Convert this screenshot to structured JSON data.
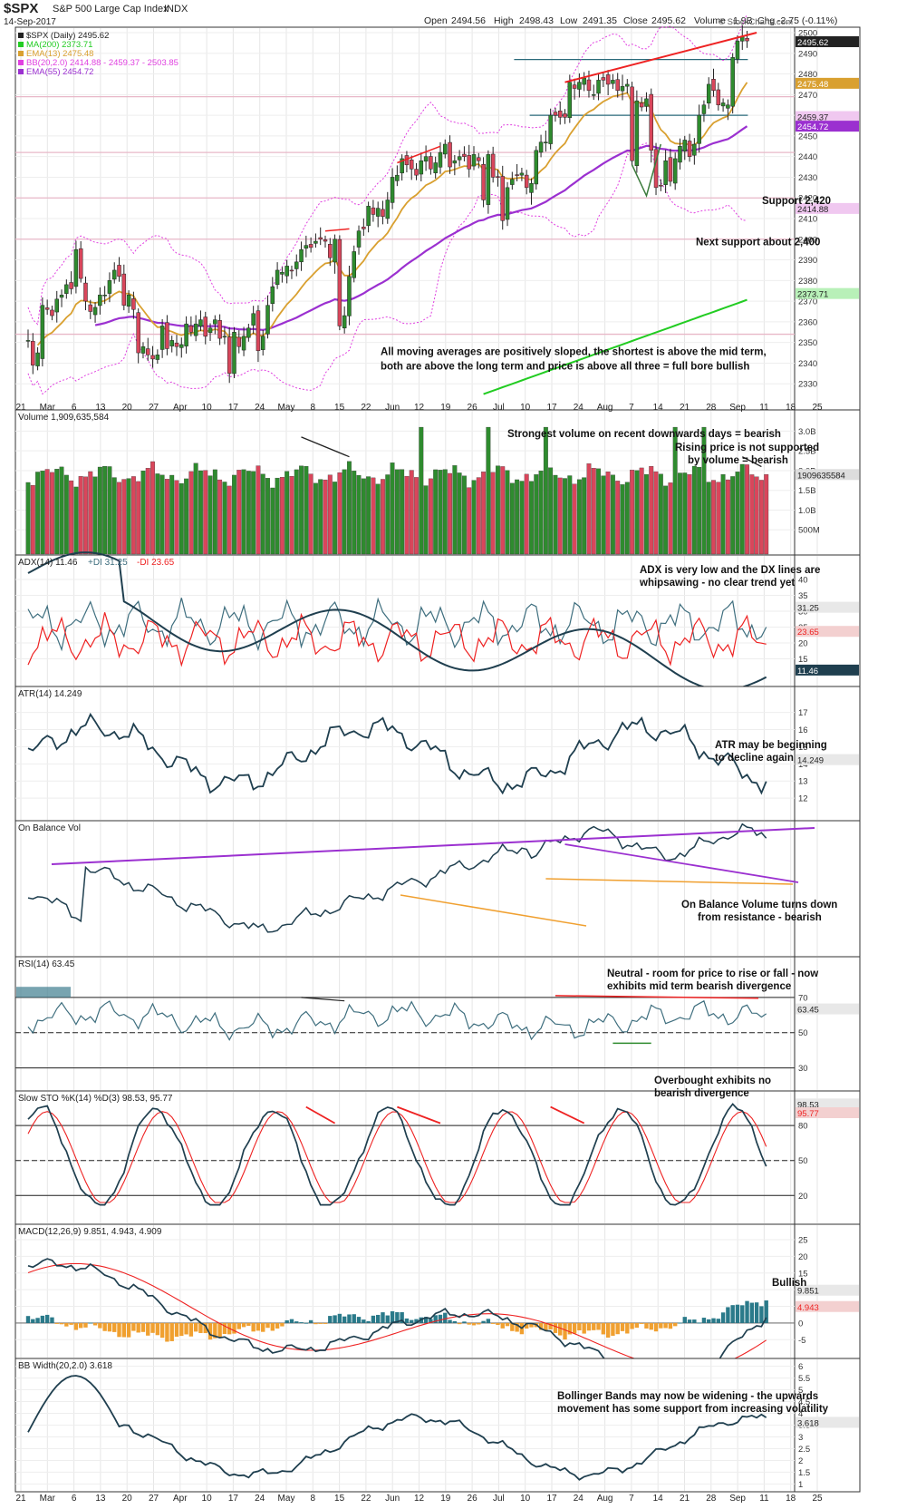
{
  "header": {
    "symbol": "$SPX",
    "name": "S&P 500 Large Cap Index",
    "exchange": "INDX",
    "date": "14-Sep-2017",
    "open_label": "Open",
    "open": "2494.56",
    "high_label": "High",
    "high": "2498.43",
    "low_label": "Low",
    "low": "2491.35",
    "close_label": "Close",
    "close": "2495.62",
    "volume_label": "Volume",
    "volume": "1.9B",
    "chg_label": "Chg",
    "chg": "-2.75 (-0.11%)",
    "copyright": "© StockCharts.com"
  },
  "colors": {
    "up": "#2e8b2e",
    "down": "#d9465b",
    "ma200": "#22cc22",
    "ema13": "#d9a030",
    "bb": "#e040e0",
    "ema55": "#9b30d0",
    "dark": "#1f3f4f",
    "red": "#ee2222",
    "orange": "#f0a030",
    "purple": "#9b30d0",
    "teal": "#2a7a8a"
  },
  "x_axis": {
    "labels": [
      "21",
      "Mar",
      "6",
      "13",
      "20",
      "27",
      "Apr",
      "10",
      "17",
      "24",
      "May",
      "8",
      "15",
      "22",
      "Jun",
      "12",
      "19",
      "26",
      "Jul",
      "10",
      "17",
      "24",
      "Aug",
      "7",
      "14",
      "21",
      "28",
      "Sep",
      "11",
      "18",
      "25"
    ]
  },
  "chart_data": [
    {
      "type": "candlestick",
      "title": "$SPX (Daily) 2495.62",
      "ylim": [
        2320,
        2500
      ],
      "yticks": [
        2330,
        2340,
        2350,
        2360,
        2370,
        2380,
        2390,
        2400,
        2410,
        2420,
        2430,
        2440,
        2450,
        2460,
        2470,
        2480,
        2490,
        2500
      ],
      "legend": [
        {
          "label": "$SPX (Daily) 2495.62",
          "color": "#222222"
        },
        {
          "label": "MA(200) 2373.71",
          "color": "#22cc22"
        },
        {
          "label": "EMA(13) 2475.48",
          "color": "#d9a030"
        },
        {
          "label": "BB(20,2.0) 2414.88 - 2459.37 - 2503.85",
          "color": "#e040e0"
        },
        {
          "label": "EMA(55) 2454.72",
          "color": "#9b30d0"
        }
      ],
      "value_tags": [
        {
          "text": "2495.62",
          "value": 2495.62,
          "color": "#ffffff",
          "bg": "#222222"
        },
        {
          "text": "2475.48",
          "value": 2475.48,
          "color": "#ffffff",
          "bg": "#d9a030"
        },
        {
          "text": "2459.37",
          "value": 2459.37,
          "color": "#222222",
          "bg": "#f0c8f0"
        },
        {
          "text": "2454.72",
          "value": 2454.72,
          "color": "#ffffff",
          "bg": "#9b30d0"
        },
        {
          "text": "2414.88",
          "value": 2414.88,
          "color": "#222222",
          "bg": "#f0c8f0"
        },
        {
          "text": "2373.71",
          "value": 2373.71,
          "color": "#222222",
          "bg": "#b8f0b8"
        }
      ],
      "candles_close": [
        2351,
        2339,
        2345,
        2368,
        2366,
        2363,
        2371,
        2373,
        2378,
        2376,
        2395,
        2381,
        2370,
        2365,
        2367,
        2373,
        2373,
        2380,
        2385,
        2382,
        2368,
        2373,
        2366,
        2345,
        2348,
        2344,
        2342,
        2344,
        2358,
        2347,
        2351,
        2348,
        2349,
        2359,
        2355,
        2359,
        2361,
        2353,
        2357,
        2361,
        2352,
        2353,
        2335,
        2355,
        2348,
        2353,
        2357,
        2364,
        2346,
        2353,
        2368,
        2377,
        2385,
        2384,
        2387,
        2385,
        2389,
        2395,
        2397,
        2396,
        2399,
        2400,
        2399,
        2391,
        2400,
        2358,
        2363,
        2382,
        2394,
        2404,
        2405,
        2416,
        2412,
        2415,
        2411,
        2419,
        2430,
        2431,
        2439,
        2436,
        2434,
        2431,
        2438,
        2440,
        2434,
        2437,
        2442,
        2446,
        2435,
        2438,
        2440,
        2440,
        2434,
        2441,
        2438,
        2419,
        2441,
        2430,
        2430,
        2409,
        2425,
        2429,
        2431,
        2432,
        2425,
        2427,
        2443,
        2447,
        2447,
        2460,
        2460,
        2459,
        2459,
        2476,
        2473,
        2476,
        2478,
        2472,
        2470,
        2477,
        2477,
        2475,
        2477,
        2472,
        2474,
        2475,
        2438,
        2467,
        2464,
        2468,
        2443,
        2425,
        2426,
        2438,
        2428,
        2439,
        2445,
        2448,
        2440,
        2446,
        2460,
        2465,
        2475,
        2472,
        2465,
        2466,
        2465,
        2488,
        2496,
        2498,
        2496
      ],
      "ma200": [
        [
          0,
          2219
        ],
        [
          154,
          2373.71
        ]
      ],
      "ema13_last": 2475.48,
      "ema55_last": 2454.72,
      "bb": {
        "lower_last": 2414.88,
        "mid_last": 2459.37,
        "upper_last": 2503.85
      },
      "horizontal_lines": [
        {
          "value": 2487,
          "color": "#2a6a7a",
          "from": 0.64,
          "to": 0.94
        },
        {
          "value": 2460,
          "color": "#2a6a7a",
          "from": 0.66,
          "to": 0.94
        },
        {
          "value": 2469,
          "color": "#e8b8c8",
          "from": 0.0,
          "to": 1.0
        },
        {
          "value": 2442,
          "color": "#e8b8c8",
          "from": 0.0,
          "to": 1.0
        },
        {
          "value": 2420,
          "color": "#e8b8c8",
          "from": 0.0,
          "to": 1.0
        },
        {
          "value": 2400,
          "color": "#e8b8c8",
          "from": 0.0,
          "to": 1.0
        },
        {
          "value": 2354,
          "color": "#e8b8c8",
          "from": 0.0,
          "to": 1.0
        }
      ],
      "annotations": [
        {
          "text": "Support 2,420",
          "value": 2417
        },
        {
          "text": "Next support about 2,400",
          "value": 2397
        },
        {
          "text": "All moving averages are positively sloped, the shortest is above the mid term,",
          "value": 2344
        },
        {
          "text": "both are above the long term and price is above all three = full bore bullish",
          "value": 2337
        }
      ]
    },
    {
      "type": "bar",
      "title": "Volume 1,909,635,584",
      "ylim": [
        0,
        3.4
      ],
      "yticks": [
        {
          "v": 0.5,
          "t": "500M"
        },
        {
          "v": 1.0,
          "t": "1.0B"
        },
        {
          "v": 1.5,
          "t": "1.5B"
        },
        {
          "v": 2.0,
          "t": "2.0B"
        },
        {
          "v": 2.5,
          "t": "2.5B"
        },
        {
          "v": 3.0,
          "t": "3.0B"
        }
      ],
      "last_tag": "1909635584",
      "annotations": [
        "Strongest volume on recent downwards days = bearish",
        "Rising price is not supported",
        "by volume = bearish"
      ]
    },
    {
      "type": "line",
      "title": "ADX(14) 11.46 +DI 31.25 -DI 23.65",
      "ylim": [
        8,
        46
      ],
      "yticks": [
        15,
        20,
        25,
        30,
        35,
        40
      ],
      "series": [
        {
          "name": "ADX(14)",
          "last": 11.46
        },
        {
          "name": "+DI",
          "last": 31.25
        },
        {
          "name": "-DI",
          "last": 23.65
        }
      ],
      "tags": [
        "31.25",
        "23.65",
        "11.46"
      ],
      "annotations": [
        "ADX is very low and the DX lines are",
        "whipsawing - no clear trend yet"
      ]
    },
    {
      "type": "line",
      "title": "ATR(14) 14.249",
      "ylim": [
        11,
        18.2
      ],
      "yticks": [
        12,
        13,
        14,
        15,
        16,
        17
      ],
      "last_tag": "14.249",
      "annotations": [
        "ATR may be beginning",
        "to decline again"
      ]
    },
    {
      "type": "line",
      "title": "On Balance Vol",
      "annotations": [
        "On Balance Volume turns down",
        "from resistance - bearish"
      ]
    },
    {
      "type": "line",
      "title": "RSI(14) 63.45",
      "ylim": [
        20,
        90
      ],
      "yticks": [
        30,
        50,
        70
      ],
      "last_tag": "63.45",
      "annotations": [
        "Neutral - room for price to rise or fall - now",
        "exhibits mid term bearish divergence"
      ]
    },
    {
      "type": "line",
      "title": "Slow STO %K(14) %D(3) 98.53, 95.77",
      "ylim": [
        0,
        105
      ],
      "yticks": [
        20,
        50,
        80
      ],
      "tags": [
        "98.53",
        "95.77"
      ],
      "annotations": [
        "Overbought exhibits no",
        "bearish divergence"
      ]
    },
    {
      "type": "line",
      "title": "MACD(12,26,9) 9.851, 4.943, 4.909",
      "ylim": [
        -9,
        28
      ],
      "yticks": [
        -5,
        0,
        5,
        10,
        15,
        20,
        25
      ],
      "tags": [
        "9.851",
        "4.943"
      ],
      "annotations": [
        "Bullish"
      ]
    },
    {
      "type": "line",
      "title": "BB Width(20,2.0) 3.618",
      "ylim": [
        0.9,
        6.1
      ],
      "yticks": [
        1.0,
        1.5,
        2.0,
        2.5,
        3.0,
        3.5,
        4.0,
        4.5,
        5.0,
        5.5,
        6.0
      ],
      "last_tag": "3.618",
      "annotations": [
        "Bollinger Bands may now be widening - the upwards",
        "movement has some support from increasing volatility"
      ]
    }
  ]
}
